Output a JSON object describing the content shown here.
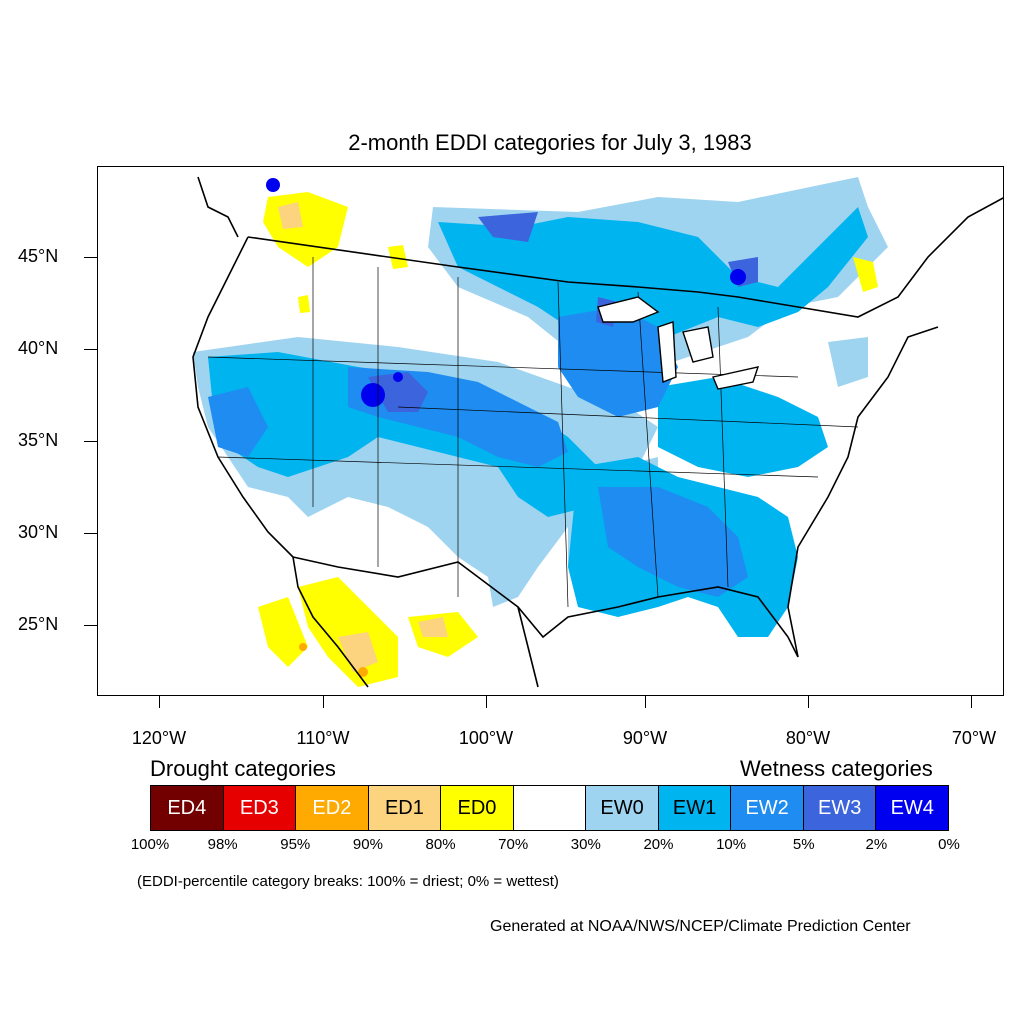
{
  "title": "2-month EDDI categories for July 3, 1983",
  "lat_ticks": [
    "45°N",
    "40°N",
    "35°N",
    "30°N",
    "25°N"
  ],
  "lon_ticks": [
    "120°W",
    "110°W",
    "100°W",
    "90°W",
    "80°W",
    "70°W"
  ],
  "legend": {
    "drought_heading": "Drought categories",
    "wetness_heading": "Wetness categories",
    "categories": [
      {
        "label": "ED4",
        "color": "#730000",
        "text_color": "#ffffff"
      },
      {
        "label": "ED3",
        "color": "#e60000",
        "text_color": "#ffffff"
      },
      {
        "label": "ED2",
        "color": "#ffaa00",
        "text_color": "#ffffff"
      },
      {
        "label": "ED1",
        "color": "#fcd37f",
        "text_color": "#000000"
      },
      {
        "label": "ED0",
        "color": "#ffff00",
        "text_color": "#000000"
      },
      {
        "label": "",
        "color": "#ffffff",
        "text_color": "#000000"
      },
      {
        "label": "EW0",
        "color": "#9fd4f0",
        "text_color": "#000000"
      },
      {
        "label": "EW1",
        "color": "#00b4f0",
        "text_color": "#000000"
      },
      {
        "label": "EW2",
        "color": "#1e8cf0",
        "text_color": "#ffffff"
      },
      {
        "label": "EW3",
        "color": "#3c64dc",
        "text_color": "#ffffff"
      },
      {
        "label": "EW4",
        "color": "#0000f0",
        "text_color": "#ffffff"
      }
    ],
    "percentiles": [
      "100%",
      "98%",
      "95%",
      "90%",
      "80%",
      "70%",
      "30%",
      "20%",
      "10%",
      "5%",
      "2%",
      "0%"
    ]
  },
  "note": "(EDDI-percentile category breaks: 100% = driest; 0% = wettest)",
  "credit": "Generated at NOAA/NWS/NCEP/Climate Prediction Center"
}
